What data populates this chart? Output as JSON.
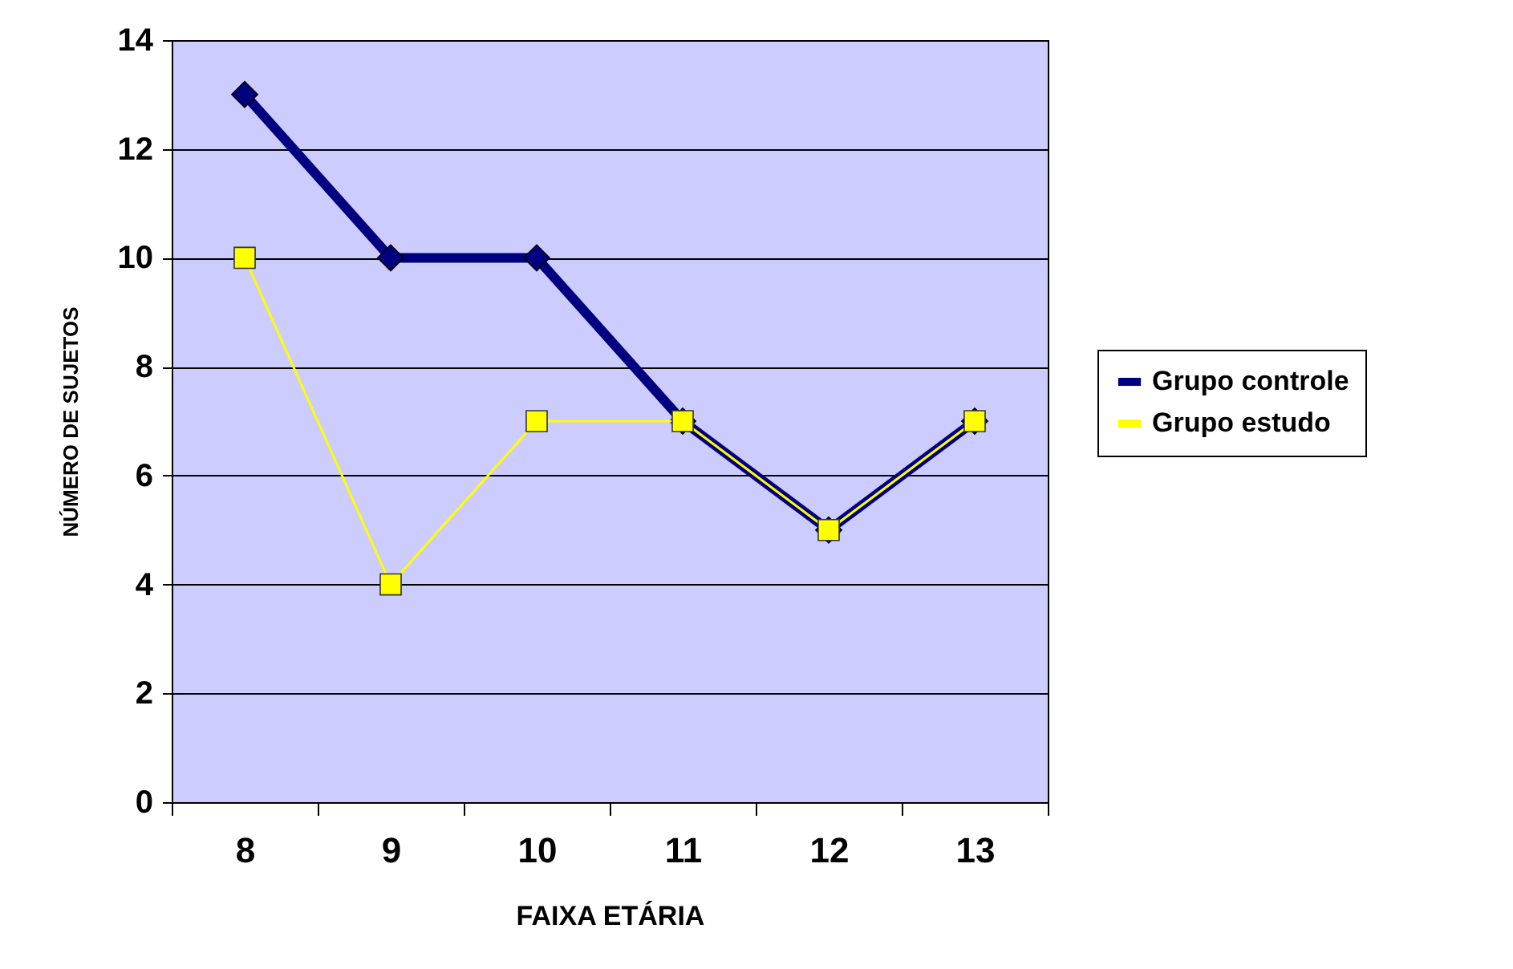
{
  "chart_data": {
    "type": "line",
    "xlabel": "FAIXA ETÁRIA",
    "ylabel": "NÚMERO DE SUJETOS",
    "categories": [
      "8",
      "9",
      "10",
      "11",
      "12",
      "13"
    ],
    "series": [
      {
        "name": "Grupo controle",
        "color": "#000080",
        "marker": "diamond",
        "values": [
          13,
          10,
          10,
          7,
          5,
          7
        ]
      },
      {
        "name": "Grupo estudo",
        "color": "#ffff00",
        "marker": "square",
        "values": [
          10,
          4,
          7,
          7,
          5,
          7
        ]
      }
    ],
    "ylim": [
      0,
      14
    ],
    "yticks": [
      0,
      2,
      4,
      6,
      8,
      10,
      12,
      14
    ],
    "grid": "y",
    "legend": "right"
  }
}
